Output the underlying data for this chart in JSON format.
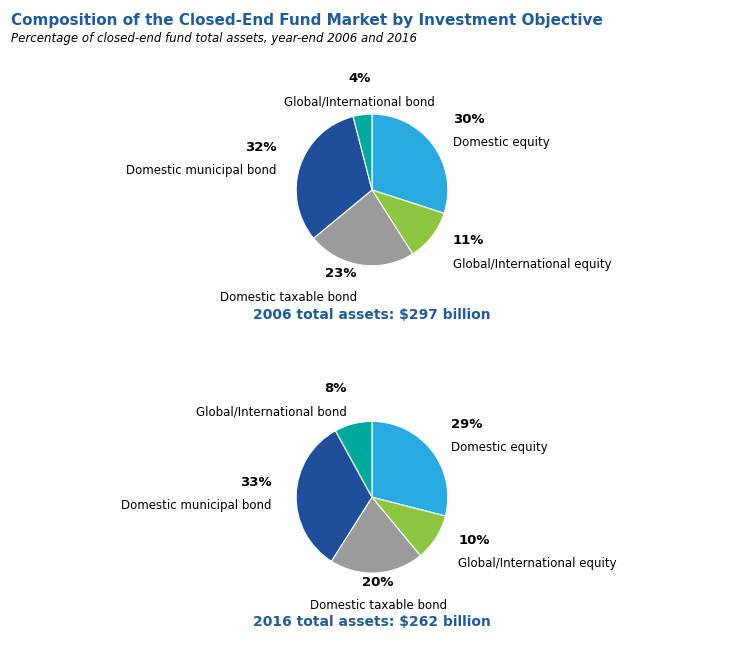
{
  "title": "Composition of the Closed-End Fund Market by Investment Objective",
  "subtitle": "Percentage of closed-end fund total assets, year-end 2006 and 2016",
  "title_color": "#1F5C99",
  "subtitle_color": "#000000",
  "chart1": {
    "values": [
      30,
      11,
      23,
      32,
      4
    ],
    "labels": [
      "Domestic equity",
      "Global/International equity",
      "Domestic taxable bond",
      "Domestic municipal bond",
      "Global/International bond"
    ],
    "pcts": [
      "30%",
      "11%",
      "23%",
      "32%",
      "4%"
    ],
    "colors": [
      "#29ABE2",
      "#8DC63F",
      "#9B9B9B",
      "#1F4E9B",
      "#00A99D"
    ],
    "total_label": "2006 total assets: $297 billion"
  },
  "chart2": {
    "values": [
      29,
      10,
      20,
      33,
      8
    ],
    "labels": [
      "Domestic equity",
      "Global/International equity",
      "Domestic taxable bond",
      "Domestic municipal bond",
      "Global/International bond"
    ],
    "pcts": [
      "29%",
      "10%",
      "20%",
      "33%",
      "8%"
    ],
    "colors": [
      "#29ABE2",
      "#8DC63F",
      "#9B9B9B",
      "#1F4E9B",
      "#00A99D"
    ],
    "total_label": "2016 total assets: $262 billion"
  },
  "label_fontsize": 8.5,
  "pct_fontsize": 9.5,
  "total_fontsize": 10,
  "total_color": "#1F5C99",
  "background_color": "#FFFFFF"
}
